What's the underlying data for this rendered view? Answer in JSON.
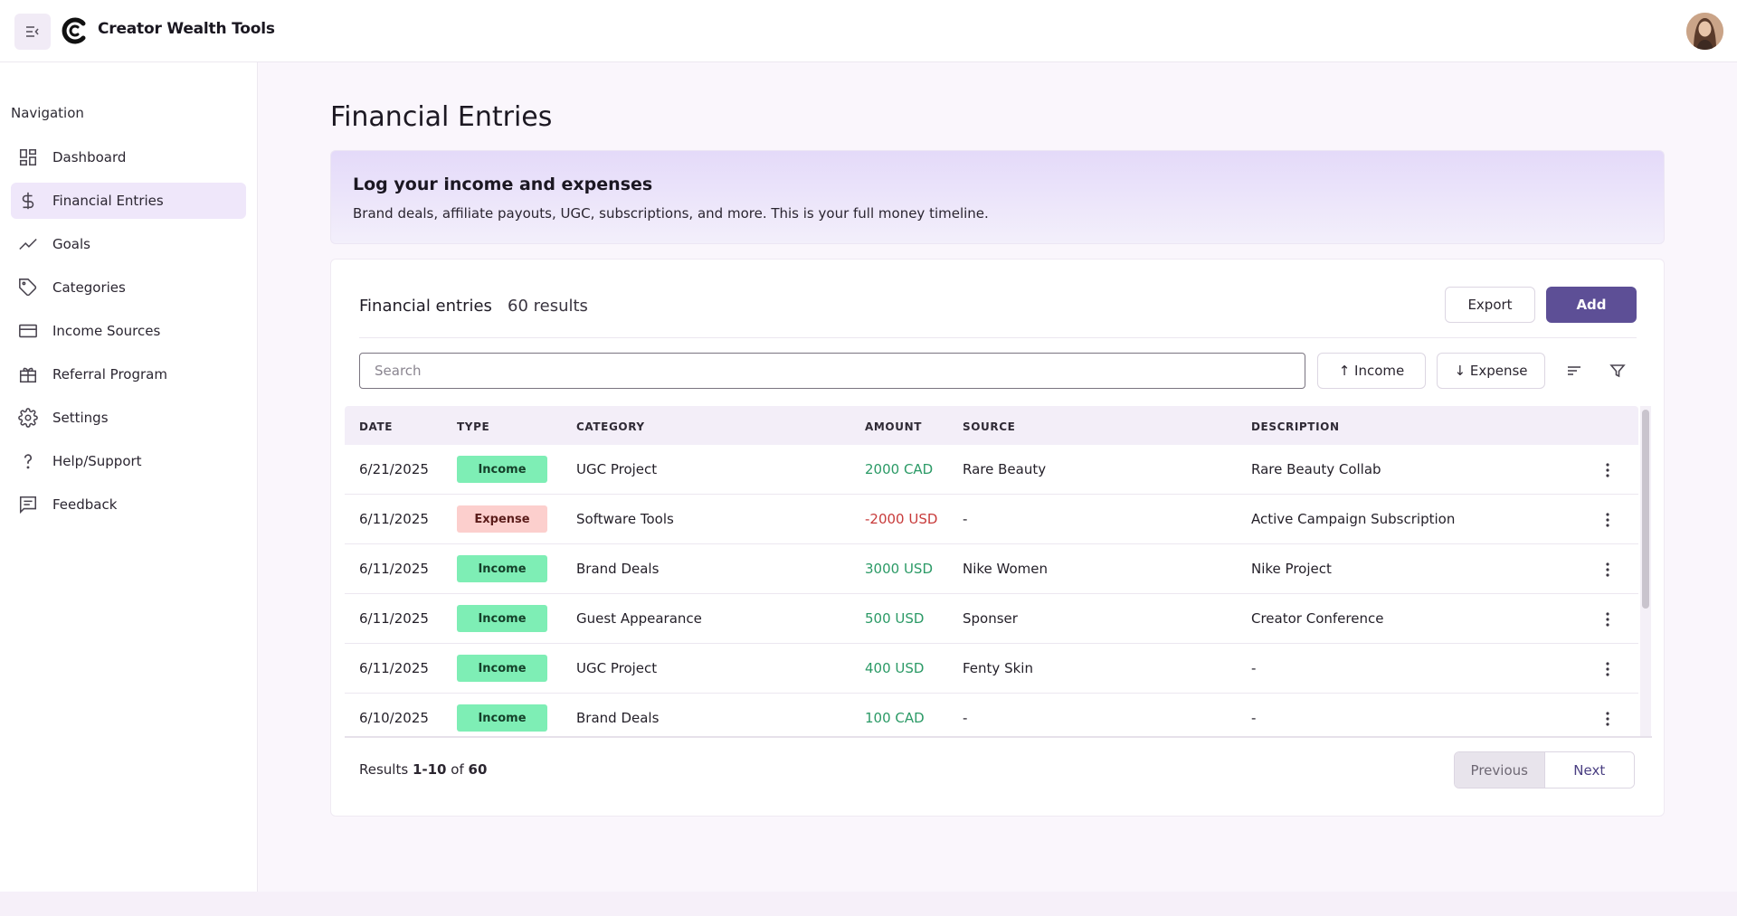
{
  "app": {
    "title": "Creator Wealth Tools"
  },
  "sidebar": {
    "heading": "Navigation",
    "items": [
      {
        "label": "Dashboard",
        "icon": "dashboard-icon"
      },
      {
        "label": "Financial Entries",
        "icon": "dollar-icon",
        "active": true
      },
      {
        "label": "Goals",
        "icon": "trending-up-icon"
      },
      {
        "label": "Categories",
        "icon": "tag-icon"
      },
      {
        "label": "Income Sources",
        "icon": "credit-card-icon"
      },
      {
        "label": "Referral Program",
        "icon": "gift-icon"
      },
      {
        "label": "Settings",
        "icon": "gear-icon"
      },
      {
        "label": "Help/Support",
        "icon": "question-icon"
      },
      {
        "label": "Feedback",
        "icon": "feedback-icon"
      }
    ]
  },
  "main": {
    "page_title": "Financial Entries",
    "banner": {
      "title": "Log your income and expenses",
      "text": "Brand deals, affiliate payouts, UGC, subscriptions, and more. This is your full money timeline."
    },
    "card": {
      "title": "Financial entries",
      "count": "60 results",
      "export_label": "Export",
      "add_label": "Add",
      "search_placeholder": "Search",
      "income_filter_label": "↑ Income",
      "expense_filter_label": "↓ Expense"
    },
    "table": {
      "columns": [
        "DATE",
        "TYPE",
        "CATEGORY",
        "AMOUNT",
        "SOURCE",
        "DESCRIPTION"
      ],
      "rows": [
        {
          "date": "6/21/2025",
          "type": "Income",
          "category": "UGC Project",
          "amount": "2000 CAD",
          "source": "Rare Beauty",
          "description": "Rare Beauty Collab"
        },
        {
          "date": "6/11/2025",
          "type": "Expense",
          "category": "Software Tools",
          "amount": "-2000 USD",
          "source": "-",
          "description": "Active Campaign Subscription"
        },
        {
          "date": "6/11/2025",
          "type": "Income",
          "category": "Brand Deals",
          "amount": "3000 USD",
          "source": "Nike Women",
          "description": "Nike Project"
        },
        {
          "date": "6/11/2025",
          "type": "Income",
          "category": "Guest Appearance",
          "amount": "500 USD",
          "source": "Sponser",
          "description": "Creator Conference"
        },
        {
          "date": "6/11/2025",
          "type": "Income",
          "category": "UGC Project",
          "amount": "400 USD",
          "source": "Fenty Skin",
          "description": "-"
        },
        {
          "date": "6/10/2025",
          "type": "Income",
          "category": "Brand Deals",
          "amount": "100 CAD",
          "source": "-",
          "description": "-"
        }
      ]
    },
    "footer": {
      "results_prefix": "Results",
      "results_range": "1-10",
      "results_of": "of",
      "results_total": "60",
      "previous_label": "Previous",
      "next_label": "Next"
    }
  },
  "colors": {
    "accent": "#5d4f96",
    "income_badge": "#7eeeb5",
    "expense_badge": "#fccfcd",
    "positive_amount": "#2b9a66",
    "negative_amount": "#c83b3b"
  }
}
